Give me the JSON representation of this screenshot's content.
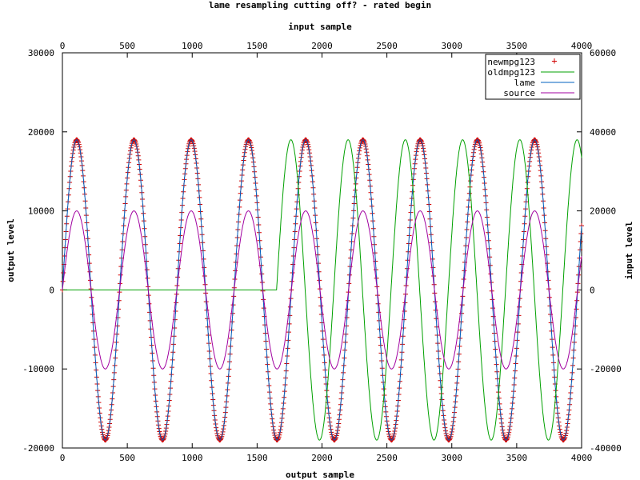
{
  "chart_data": {
    "type": "line",
    "title": "lame resampling cutting off? - rated begin",
    "xlabel": "output sample",
    "ylabel": "output level",
    "x2label": "input sample",
    "y2label": "input level",
    "xlim": [
      0,
      4000
    ],
    "ylim": [
      -20000,
      30000
    ],
    "x2lim": [
      0,
      4000
    ],
    "y2lim": [
      -40000,
      60000
    ],
    "x_ticks": [
      "0",
      "500",
      "1000",
      "1500",
      "2000",
      "2500",
      "3000",
      "3500",
      "4000"
    ],
    "y_ticks": [
      "-20000",
      "-10000",
      "0",
      "10000",
      "20000",
      "30000"
    ],
    "x2_ticks": [
      "0",
      "500",
      "1000",
      "1500",
      "2000",
      "2500",
      "3000",
      "3500",
      "4000"
    ],
    "y2_ticks": [
      "-40000",
      "-20000",
      "0",
      "20000",
      "40000",
      "60000"
    ],
    "grid": false,
    "legend_position": "top-right",
    "colors": {
      "newmpg123": "#d00000",
      "oldmpg123": "#00a000",
      "lame": "#0060c0",
      "source": "#a000a0"
    },
    "series": [
      {
        "name": "newmpg123",
        "style": "points-plus",
        "axis": "x1y1",
        "amplitude": 19000,
        "period": 441,
        "phase_start": 0,
        "x_range": [
          0,
          4000
        ]
      },
      {
        "name": "oldmpg123",
        "style": "line",
        "axis": "x1y1",
        "amplitude": 19000,
        "period": 441,
        "zero_until": 1650,
        "phase_start": 1650,
        "x_range": [
          0,
          4000
        ]
      },
      {
        "name": "lame",
        "style": "line",
        "axis": "x1y1",
        "amplitude": 19000,
        "period": 441,
        "phase_start": 0,
        "x_range": [
          0,
          4000
        ]
      },
      {
        "name": "source",
        "style": "line",
        "axis": "x2y2",
        "amplitude": 20000,
        "period": 441,
        "phase_start": 0,
        "x_range": [
          0,
          4000
        ]
      }
    ]
  }
}
